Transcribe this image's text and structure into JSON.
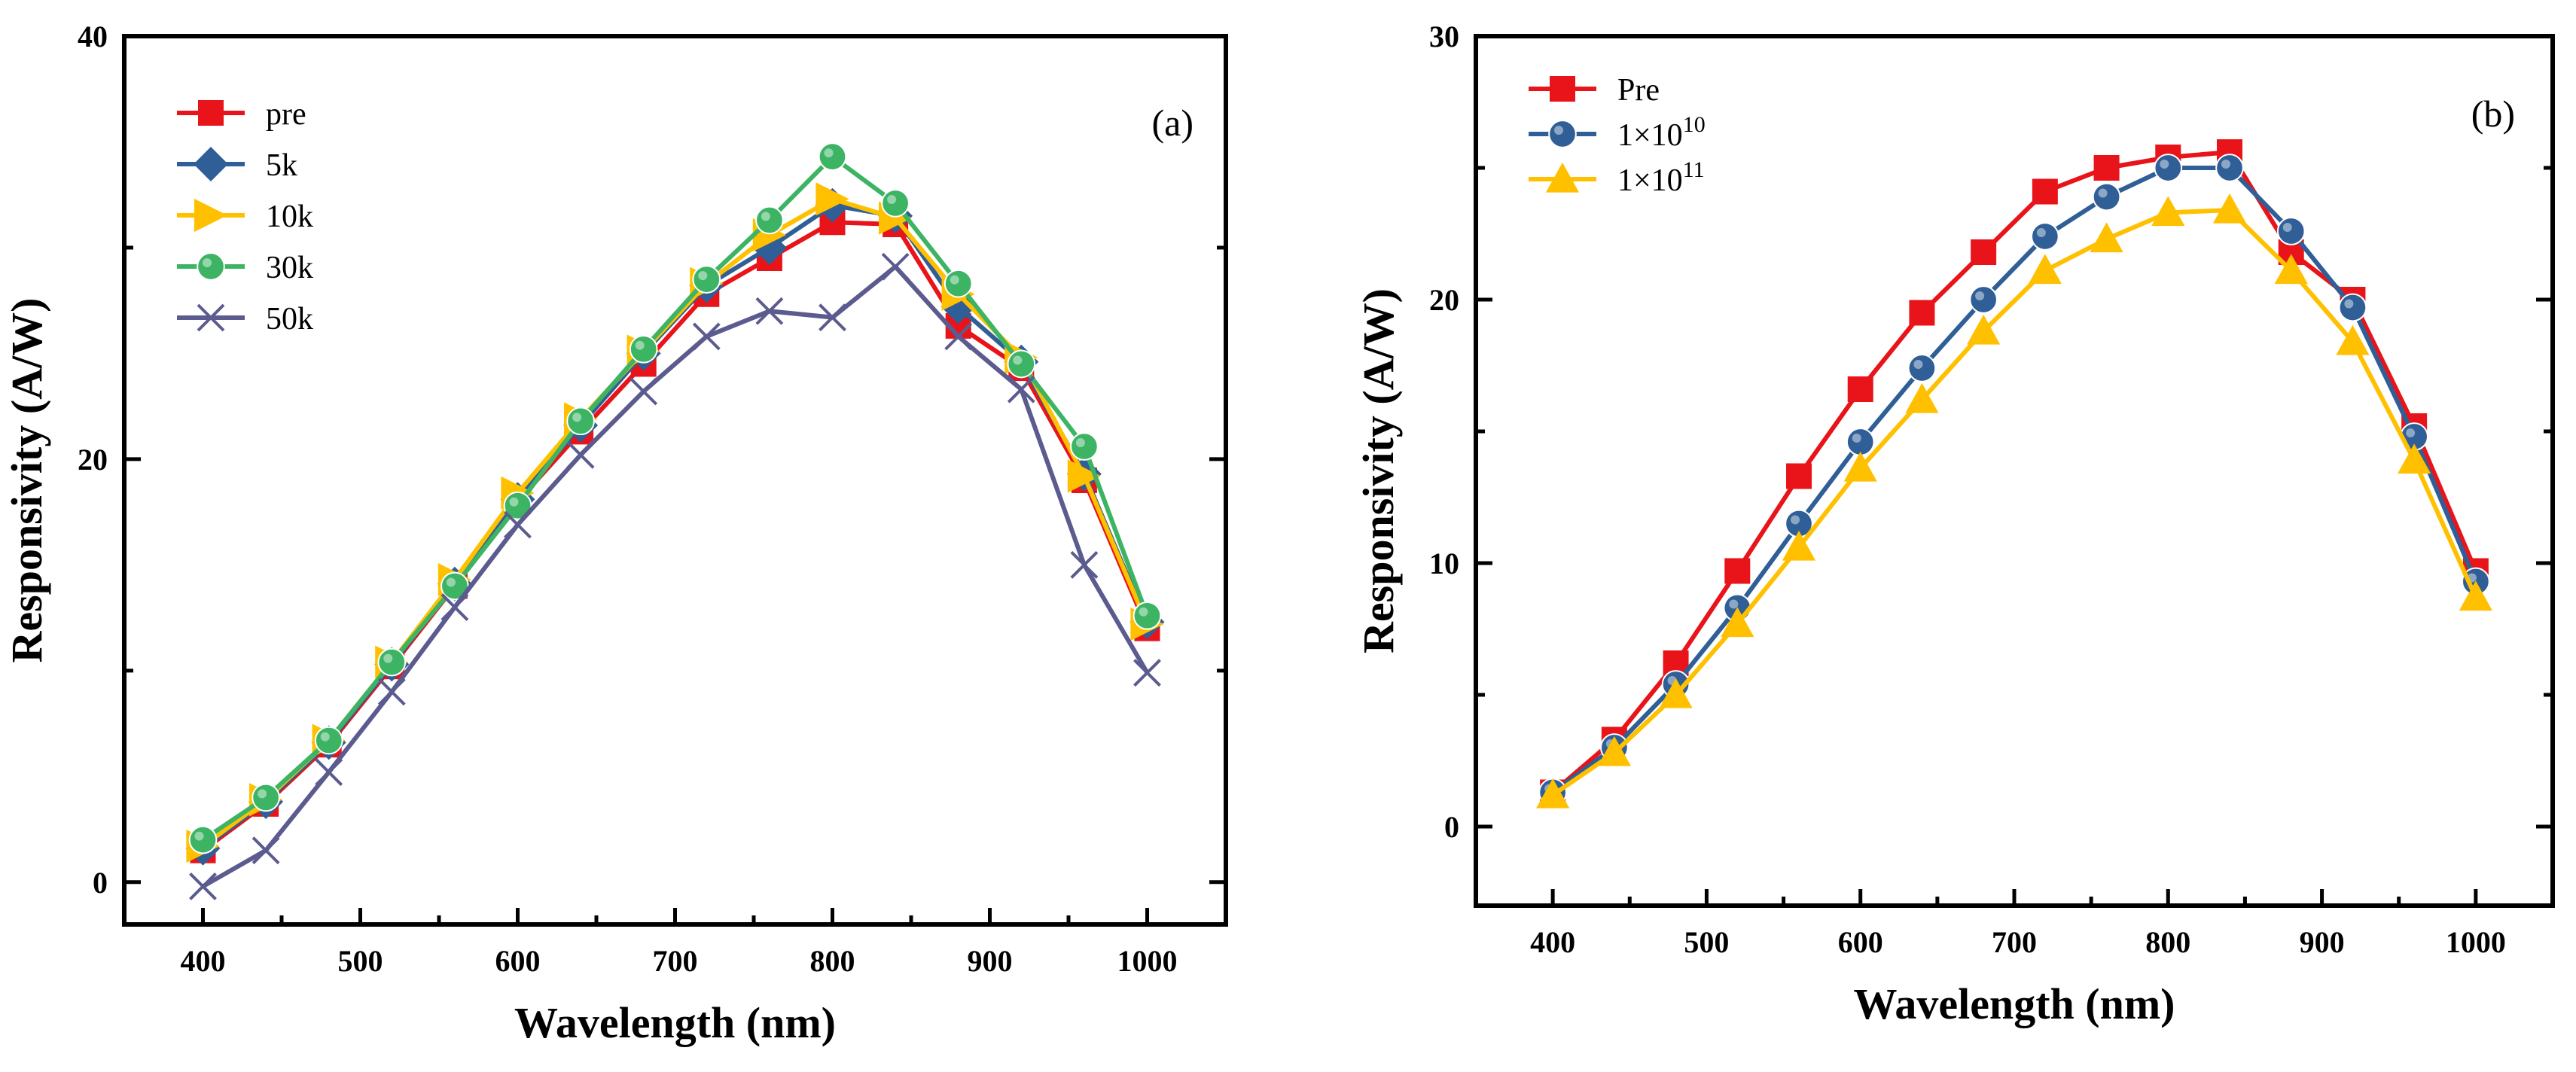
{
  "chart_data": [
    {
      "type": "line",
      "panel_label": "(a)",
      "xlabel": "Wavelength (nm)",
      "ylabel": "Responsivity (A/W)",
      "xlim": [
        350,
        1050
      ],
      "ylim": [
        -2,
        40
      ],
      "x_ticks": [
        400,
        500,
        600,
        700,
        800,
        900,
        1000
      ],
      "y_ticks": [
        0,
        20,
        40
      ],
      "y_tick_labels": [
        "0",
        "20",
        "40"
      ],
      "legend_position": "top-left",
      "x": [
        400,
        440,
        480,
        520,
        560,
        600,
        640,
        680,
        720,
        760,
        800,
        840,
        880,
        920,
        960,
        1000
      ],
      "series": [
        {
          "name": "pre",
          "label_main": "pre",
          "label_sup": "",
          "color": "#e8141a",
          "marker": "square",
          "values": [
            1.5,
            3.7,
            6.5,
            10.2,
            14.0,
            18.0,
            21.3,
            24.5,
            27.8,
            29.5,
            31.2,
            31.1,
            26.3,
            24.3,
            19.0,
            12.0
          ]
        },
        {
          "name": "5k",
          "label_main": "5k",
          "label_sup": "",
          "color": "#2f5f96",
          "marker": "diamond",
          "values": [
            1.6,
            3.8,
            6.6,
            10.3,
            14.1,
            18.1,
            21.6,
            25.0,
            28.2,
            30.0,
            32.0,
            31.5,
            27.2,
            24.6,
            19.3,
            12.3
          ]
        },
        {
          "name": "10k",
          "label_main": "10k",
          "label_sup": "",
          "color": "#ffc000",
          "marker": "triangle-right",
          "values": [
            1.7,
            3.9,
            6.7,
            10.4,
            14.3,
            18.4,
            21.9,
            25.1,
            28.3,
            30.6,
            32.3,
            31.4,
            27.8,
            24.8,
            19.2,
            12.2
          ]
        },
        {
          "name": "30k",
          "label_main": "30k",
          "label_sup": "",
          "color": "#3cb464",
          "marker": "circle",
          "values": [
            2.0,
            4.0,
            6.7,
            10.4,
            14.0,
            17.8,
            21.8,
            25.2,
            28.5,
            31.3,
            34.3,
            32.1,
            28.3,
            24.5,
            20.6,
            12.6
          ]
        },
        {
          "name": "50k",
          "label_main": "50k",
          "label_sup": "",
          "color": "#5b5b8f",
          "marker": "x",
          "values": [
            -0.2,
            1.5,
            5.2,
            9.0,
            13.0,
            16.9,
            20.2,
            23.2,
            25.8,
            27.0,
            26.7,
            29.1,
            25.8,
            23.3,
            15.0,
            9.9
          ]
        }
      ]
    },
    {
      "type": "line",
      "panel_label": "(b)",
      "xlabel": "Wavelength (nm)",
      "ylabel": "Responsivity (A/W)",
      "xlim": [
        350,
        1050
      ],
      "ylim": [
        -3,
        30
      ],
      "x_ticks": [
        400,
        500,
        600,
        700,
        800,
        900,
        1000
      ],
      "y_ticks": [
        0,
        10,
        20,
        30
      ],
      "y_tick_labels": [
        "0",
        "10",
        "20",
        "30"
      ],
      "legend_position": "top-left",
      "x": [
        400,
        440,
        480,
        520,
        560,
        600,
        640,
        680,
        720,
        760,
        800,
        840,
        880,
        920,
        960,
        1000
      ],
      "series": [
        {
          "name": "Pre",
          "label_main": "Pre",
          "label_sup": "",
          "color": "#e8141a",
          "marker": "square",
          "values": [
            1.3,
            3.3,
            6.2,
            9.7,
            13.3,
            16.6,
            19.5,
            21.8,
            24.1,
            25.0,
            25.4,
            25.6,
            21.8,
            20.0,
            15.2,
            9.7
          ]
        },
        {
          "name": "1×10^10",
          "label_main": "1×10",
          "label_sup": "10",
          "color": "#2f5f96",
          "marker": "circle",
          "values": [
            1.3,
            3.0,
            5.4,
            8.3,
            11.5,
            14.6,
            17.4,
            20.0,
            22.4,
            23.9,
            25.0,
            25.0,
            22.6,
            19.7,
            14.8,
            9.3
          ]
        },
        {
          "name": "1×10^11",
          "label_main": "1×10",
          "label_sup": "11",
          "color": "#ffc000",
          "marker": "triangle",
          "values": [
            1.2,
            2.8,
            5.0,
            7.7,
            10.6,
            13.6,
            16.2,
            18.8,
            21.1,
            22.3,
            23.3,
            23.4,
            21.1,
            18.4,
            13.9,
            8.7
          ]
        }
      ]
    }
  ]
}
